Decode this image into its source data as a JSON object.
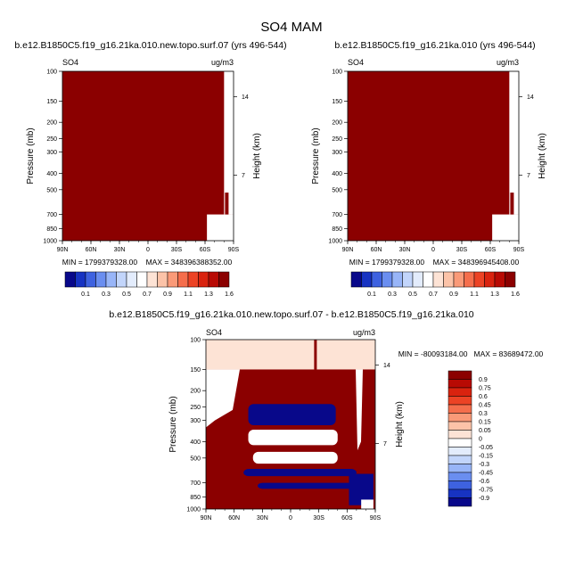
{
  "page_title": "SO4 MAM",
  "chart_data": [
    {
      "type": "heatmap",
      "title": "b.e12.B1850C5.f19_g16.21ka.010.new.topo.surf.07 (yrs 496-544)",
      "left_label": "SO4",
      "right_label": "ug/m3",
      "xlabel": "",
      "ylabel": "Pressure (mb)",
      "ylabel_right": "Height (km)",
      "x_tick_labels": [
        "90N",
        "60N",
        "30N",
        "0",
        "30S",
        "60S",
        "90S"
      ],
      "y_tick_labels": [
        "100",
        "150",
        "200",
        "250",
        "300",
        "400",
        "500",
        "700",
        "850",
        "1000"
      ],
      "y_tick_values": [
        100,
        150,
        200,
        250,
        300,
        400,
        500,
        700,
        850,
        1000
      ],
      "ylim": [
        100,
        1000
      ],
      "xlim": [
        90,
        -90
      ],
      "right_tick_labels": [
        "14",
        "7"
      ],
      "right_tick_values": [
        14,
        7
      ],
      "stats": "MIN = 1799379328.00    MAX = 348396388352.00",
      "colorbar": {
        "labels": [
          "0.1",
          "0.3",
          "0.5",
          "0.7",
          "0.9",
          "1.1",
          "1.3",
          "1.6"
        ],
        "colors": [
          "#08088a",
          "#1733c2",
          "#3e62e0",
          "#6a8ef0",
          "#98b5f8",
          "#c2d5fb",
          "#e3ecfc",
          "#ffffff",
          "#fde3d5",
          "#fcc3a8",
          "#fa9a78",
          "#f56e4c",
          "#ec4325",
          "#d9230f",
          "#b80a04",
          "#8b0000"
        ]
      },
      "fill_color": "#8b0000",
      "topography_note": "valid data region truncated near south pole at high pressure"
    },
    {
      "type": "heatmap",
      "title": "b.e12.B1850C5.f19_g16.21ka.010 (yrs 496-544)",
      "left_label": "SO4",
      "right_label": "ug/m3",
      "xlabel": "",
      "ylabel": "Pressure (mb)",
      "ylabel_right": "Height (km)",
      "x_tick_labels": [
        "90N",
        "60N",
        "30N",
        "0",
        "30S",
        "60S",
        "90S"
      ],
      "y_tick_labels": [
        "100",
        "150",
        "200",
        "250",
        "300",
        "400",
        "500",
        "700",
        "850",
        "1000"
      ],
      "y_tick_values": [
        100,
        150,
        200,
        250,
        300,
        400,
        500,
        700,
        850,
        1000
      ],
      "ylim": [
        100,
        1000
      ],
      "xlim": [
        90,
        -90
      ],
      "right_tick_labels": [
        "14",
        "7"
      ],
      "right_tick_values": [
        14,
        7
      ],
      "stats": "MIN = 1799379328.00    MAX = 348396945408.00",
      "colorbar": {
        "labels": [
          "0.1",
          "0.3",
          "0.5",
          "0.7",
          "0.9",
          "1.1",
          "1.3",
          "1.6"
        ],
        "colors": [
          "#08088a",
          "#1733c2",
          "#3e62e0",
          "#6a8ef0",
          "#98b5f8",
          "#c2d5fb",
          "#e3ecfc",
          "#ffffff",
          "#fde3d5",
          "#fcc3a8",
          "#fa9a78",
          "#f56e4c",
          "#ec4325",
          "#d9230f",
          "#b80a04",
          "#8b0000"
        ]
      },
      "fill_color": "#8b0000"
    },
    {
      "type": "heatmap",
      "title": "b.e12.B1850C5.f19_g16.21ka.010.new.topo.surf.07 - b.e12.B1850C5.f19_g16.21ka.010",
      "left_label": "SO4",
      "right_label": "ug/m3",
      "xlabel": "",
      "ylabel": "Pressure (mb)",
      "ylabel_right": "Height (km)",
      "x_tick_labels": [
        "90N",
        "60N",
        "30N",
        "0",
        "30S",
        "60S",
        "90S"
      ],
      "y_tick_labels": [
        "100",
        "150",
        "200",
        "250",
        "300",
        "400",
        "500",
        "700",
        "850",
        "1000"
      ],
      "y_tick_values": [
        100,
        150,
        200,
        250,
        300,
        400,
        500,
        700,
        850,
        1000
      ],
      "ylim": [
        100,
        1000
      ],
      "xlim": [
        90,
        -90
      ],
      "right_tick_labels": [
        "14",
        "7"
      ],
      "right_tick_values": [
        14,
        7
      ],
      "stats": "MIN = -80093184.00   MAX = 83689472.00",
      "colorbar": {
        "labels": [
          "0.9",
          "0.75",
          "0.6",
          "0.45",
          "0.3",
          "0.15",
          "0.05",
          "0",
          "-0.05",
          "-0.15",
          "-0.3",
          "-0.45",
          "-0.6",
          "-0.75",
          "-0.9"
        ],
        "colors": [
          "#8b0000",
          "#b80a04",
          "#d9230f",
          "#ec4325",
          "#f56e4c",
          "#fa9a78",
          "#fcc3a8",
          "#fde3d5",
          "#ffffff",
          "#e3ecfc",
          "#c2d5fb",
          "#98b5f8",
          "#6a8ef0",
          "#3e62e0",
          "#1733c2",
          "#08088a"
        ]
      },
      "bands": [
        {
          "label": "upper",
          "p_top": 100,
          "p_bottom": 150,
          "color": "#fde3d5"
        },
        {
          "label": "positive-main",
          "p_top": 150,
          "p_bottom": 1000,
          "color": "#8b0000"
        },
        {
          "label": "negative-upper",
          "lat_from": 45,
          "lat_to": -48,
          "p_top": 240,
          "p_bottom": 320,
          "color": "#08088a"
        },
        {
          "label": "zero-band-1",
          "lat_from": 45,
          "lat_to": -50,
          "p_top": 340,
          "p_bottom": 420,
          "color": "#ffffff"
        },
        {
          "label": "zero-band-2",
          "lat_from": 40,
          "lat_to": -50,
          "p_top": 460,
          "p_bottom": 540,
          "color": "#ffffff"
        },
        {
          "label": "negative-lower",
          "lat_from": 50,
          "lat_to": -70,
          "p_top": 580,
          "p_bottom": 640,
          "color": "#08088a"
        },
        {
          "label": "negative-lower-2",
          "lat_from": 35,
          "lat_to": -70,
          "p_top": 700,
          "p_bottom": 760,
          "color": "#08088a"
        }
      ]
    }
  ]
}
